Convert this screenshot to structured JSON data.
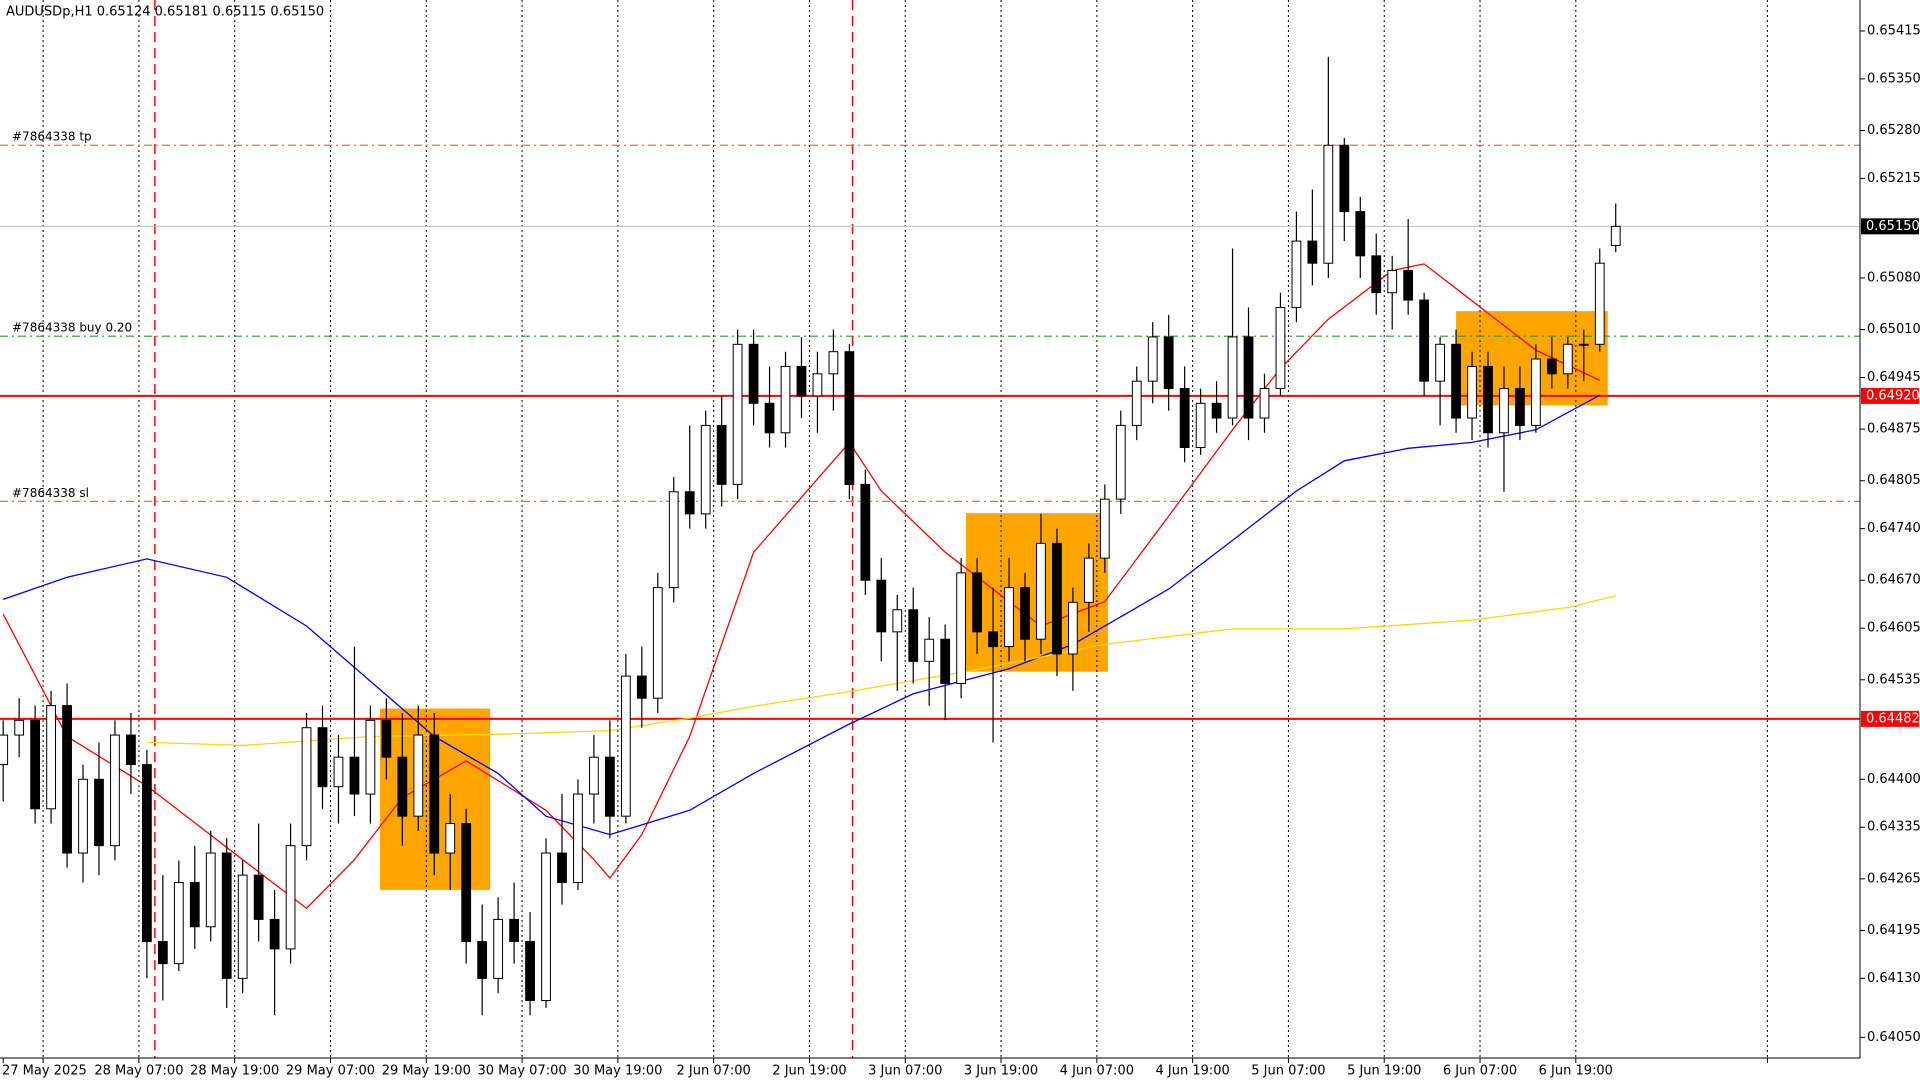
{
  "chart_data": {
    "type": "candlestick",
    "header": "AUDUSDp,H1  0.65124 0.65181 0.65115 0.65150",
    "xlim": [
      -0.2,
      116.3
    ],
    "ylim": [
      0.64022,
      0.65457
    ],
    "grid": true,
    "bull_color": "#ffffff",
    "bear_color": "#000000",
    "outline_color": "#000000",
    "yticks": [
      0.65415,
      {
        "value": 0.6535,
        "label": "0.65350"
      },
      {
        "value": 0.6528,
        "label": "0.65280"
      },
      0.65215,
      {
        "value": 0.6508,
        "label": "0.65080"
      },
      {
        "value": 0.6501,
        "label": "0.65010"
      },
      0.64945,
      0.64875,
      0.64805,
      {
        "value": 0.6474,
        "label": "0.64740"
      },
      {
        "value": 0.6467,
        "label": "0.64670"
      },
      0.64605,
      0.64535,
      {
        "value": 0.644,
        "label": "0.64400"
      },
      0.64335,
      0.64265,
      0.64195,
      {
        "value": 0.6413,
        "label": "0.64130"
      },
      {
        "value": 0.6405,
        "label": "0.64050"
      }
    ],
    "xticks": [
      {
        "value": 0,
        "label": "27 May 2025"
      },
      {
        "value": 2.5,
        "label": null
      },
      {
        "value": 8.5,
        "label": "28 May 07:00"
      },
      {
        "value": 14.5,
        "label": "28 May 19:00"
      },
      {
        "value": 20.5,
        "label": "29 May 07:00"
      },
      {
        "value": 26.5,
        "label": "29 May 19:00"
      },
      {
        "value": 32.5,
        "label": "30 May 07:00"
      },
      {
        "value": 38.5,
        "label": "30 May 19:00"
      },
      {
        "value": 44.5,
        "label": "2 Jun 07:00"
      },
      {
        "value": 50.5,
        "label": "2 Jun 19:00"
      },
      {
        "value": 56.5,
        "label": "3 Jun 07:00"
      },
      {
        "value": 62.5,
        "label": "3 Jun 19:00"
      },
      {
        "value": 68.5,
        "label": "4 Jun 07:00"
      },
      {
        "value": 74.5,
        "label": "4 Jun 19:00"
      },
      {
        "value": 80.5,
        "label": "5 Jun 07:00"
      },
      {
        "value": 86.5,
        "label": "5 Jun 19:00"
      },
      {
        "value": 92.5,
        "label": "6 Jun 07:00"
      },
      {
        "value": 98.5,
        "label": "6 Jun 19:00"
      },
      {
        "value": 110.5,
        "label": null
      }
    ],
    "period_separators": [
      9.5,
      53.2
    ],
    "zones": [
      {
        "from": 23.6,
        "to": 30.5,
        "top": 0.64496,
        "bottom": 0.6425
      },
      {
        "from": 60.3,
        "to": 69.2,
        "top": 0.64761,
        "bottom": 0.64546
      },
      {
        "from": 91,
        "to": 100.5,
        "top": 0.65035,
        "bottom": 0.64907
      }
    ],
    "zone_color": "#ffa500",
    "price_lines": [
      {
        "value": 0.6515,
        "label": "0.65150",
        "color": "#c0c0c0",
        "label_bg": "#000000"
      },
      {
        "value": 0.6492,
        "label": "0.64920",
        "color": "#ff0000",
        "label_bg": "#ff0000"
      },
      {
        "value": 0.64482,
        "label": "0.64482",
        "color": "#ff0000",
        "label_bg": "#ff0000"
      }
    ],
    "order_lines": [
      {
        "value": 0.6526,
        "text": "#7864338 tp",
        "color": "#f07030"
      },
      {
        "value": 0.65001,
        "text": "#7864338 buy 0.20",
        "color": "#20a020"
      },
      {
        "value": 0.64777,
        "text": "#7864338 sl",
        "color": "#f07030"
      }
    ],
    "moving_averages": [
      {
        "color": "#ff0000",
        "x": [
          0,
          4,
          9,
          15,
          19,
          22,
          25,
          29,
          34,
          37,
          38,
          40,
          43,
          47,
          53,
          55,
          59,
          63,
          65,
          69,
          73,
          77,
          80,
          83,
          87,
          89,
          92,
          96,
          100
        ],
        "values": [
          0.64624,
          0.64458,
          0.64391,
          0.64291,
          0.64225,
          0.64291,
          0.64375,
          0.64425,
          0.64358,
          0.64291,
          0.64266,
          0.64325,
          0.64458,
          0.64708,
          0.64857,
          0.64791,
          0.64708,
          0.64641,
          0.64608,
          0.64641,
          0.64757,
          0.64874,
          0.64957,
          0.65024,
          0.6509,
          0.65099,
          0.65049,
          0.64982,
          0.64941
        ]
      },
      {
        "color": "#0000ff",
        "x": [
          0,
          4,
          9,
          14,
          19,
          23,
          27,
          31,
          34,
          38,
          43,
          47,
          53,
          57,
          63,
          67,
          73,
          77,
          81,
          84,
          88,
          92,
          96,
          100
        ],
        "values": [
          0.64644,
          0.64674,
          0.64699,
          0.64674,
          0.64608,
          0.64533,
          0.64458,
          0.64408,
          0.6435,
          0.64325,
          0.64358,
          0.64408,
          0.64475,
          0.64516,
          0.6455,
          0.64583,
          0.64658,
          0.64724,
          0.64791,
          0.64832,
          0.64849,
          0.64857,
          0.64874,
          0.64921
        ]
      },
      {
        "color": "#ffd700",
        "x": [
          9,
          15,
          23,
          31,
          38,
          43,
          47,
          53,
          61,
          69,
          77,
          84,
          92,
          98,
          101
        ],
        "values": [
          0.6445,
          0.64446,
          0.64458,
          0.64461,
          0.64466,
          0.64483,
          0.64499,
          0.64519,
          0.64549,
          0.64583,
          0.64604,
          0.64604,
          0.64616,
          0.64633,
          0.64649
        ]
      }
    ],
    "ohlc": [
      [
        0.6442,
        0.6448,
        0.6437,
        0.6446
      ],
      [
        0.6446,
        0.6451,
        0.6443,
        0.6448
      ],
      [
        0.6448,
        0.645,
        0.6434,
        0.6436
      ],
      [
        0.6436,
        0.6452,
        0.6434,
        0.645
      ],
      [
        0.645,
        0.6453,
        0.6428,
        0.643
      ],
      [
        0.643,
        0.6442,
        0.6426,
        0.644
      ],
      [
        0.644,
        0.6445,
        0.6427,
        0.6431
      ],
      [
        0.6431,
        0.6448,
        0.6429,
        0.6446
      ],
      [
        0.6446,
        0.6449,
        0.6438,
        0.6442
      ],
      [
        0.6442,
        0.6444,
        0.6413,
        0.6418
      ],
      [
        0.6418,
        0.6427,
        0.641,
        0.6415
      ],
      [
        0.6415,
        0.6429,
        0.6414,
        0.6426
      ],
      [
        0.6426,
        0.6431,
        0.6417,
        0.642
      ],
      [
        0.642,
        0.6433,
        0.6418,
        0.643
      ],
      [
        0.643,
        0.6432,
        0.6409,
        0.6413
      ],
      [
        0.6413,
        0.6429,
        0.6411,
        0.6427
      ],
      [
        0.6427,
        0.6434,
        0.6418,
        0.6421
      ],
      [
        0.6421,
        0.6425,
        0.6408,
        0.6417
      ],
      [
        0.6417,
        0.6434,
        0.6415,
        0.6431
      ],
      [
        0.6431,
        0.6449,
        0.6429,
        0.6447
      ],
      [
        0.6447,
        0.645,
        0.6436,
        0.6439
      ],
      [
        0.6439,
        0.6446,
        0.6434,
        0.6443
      ],
      [
        0.6443,
        0.6458,
        0.6435,
        0.6438
      ],
      [
        0.6438,
        0.645,
        0.6434,
        0.6448
      ],
      [
        0.6448,
        0.6451,
        0.644,
        0.6443
      ],
      [
        0.6443,
        0.6449,
        0.6431,
        0.6435
      ],
      [
        0.6435,
        0.645,
        0.6433,
        0.6446
      ],
      [
        0.6446,
        0.6449,
        0.6427,
        0.643
      ],
      [
        0.643,
        0.6438,
        0.6425,
        0.6434
      ],
      [
        0.6434,
        0.6436,
        0.6415,
        0.6418
      ],
      [
        0.6418,
        0.6423,
        0.6408,
        0.6413
      ],
      [
        0.6413,
        0.6424,
        0.6411,
        0.6421
      ],
      [
        0.6421,
        0.6426,
        0.6415,
        0.6418
      ],
      [
        0.6418,
        0.6422,
        0.6408,
        0.641
      ],
      [
        0.641,
        0.6432,
        0.6409,
        0.643
      ],
      [
        0.643,
        0.6438,
        0.6423,
        0.6426
      ],
      [
        0.6426,
        0.644,
        0.6425,
        0.6438
      ],
      [
        0.6438,
        0.6446,
        0.6434,
        0.6443
      ],
      [
        0.6443,
        0.6448,
        0.6432,
        0.6435
      ],
      [
        0.6435,
        0.6457,
        0.6434,
        0.6454
      ],
      [
        0.6454,
        0.6458,
        0.6447,
        0.6451
      ],
      [
        0.6451,
        0.6468,
        0.6449,
        0.6466
      ],
      [
        0.6466,
        0.6481,
        0.6464,
        0.6479
      ],
      [
        0.6479,
        0.6488,
        0.6474,
        0.6476
      ],
      [
        0.6476,
        0.649,
        0.6474,
        0.6488
      ],
      [
        0.6488,
        0.6492,
        0.6477,
        0.648
      ],
      [
        0.648,
        0.6501,
        0.6478,
        0.6499
      ],
      [
        0.6499,
        0.6501,
        0.6488,
        0.6491
      ],
      [
        0.6491,
        0.6496,
        0.6485,
        0.6487
      ],
      [
        0.6487,
        0.6498,
        0.6485,
        0.6496
      ],
      [
        0.6496,
        0.65,
        0.6489,
        0.6492
      ],
      [
        0.6492,
        0.6498,
        0.6487,
        0.6495
      ],
      [
        0.6495,
        0.6501,
        0.649,
        0.6498
      ],
      [
        0.6498,
        0.6499,
        0.6478,
        0.648
      ],
      [
        0.648,
        0.6482,
        0.6465,
        0.6467
      ],
      [
        0.6467,
        0.647,
        0.6456,
        0.646
      ],
      [
        0.646,
        0.6465,
        0.6452,
        0.6463
      ],
      [
        0.6463,
        0.6466,
        0.6453,
        0.6456
      ],
      [
        0.6456,
        0.6462,
        0.645,
        0.6459
      ],
      [
        0.6459,
        0.6461,
        0.6448,
        0.6453
      ],
      [
        0.6453,
        0.647,
        0.6451,
        0.6468
      ],
      [
        0.6468,
        0.647,
        0.6457,
        0.646
      ],
      [
        0.646,
        0.6466,
        0.6445,
        0.6458
      ],
      [
        0.6458,
        0.647,
        0.6456,
        0.6466
      ],
      [
        0.6466,
        0.6468,
        0.6456,
        0.6459
      ],
      [
        0.6459,
        0.6476,
        0.6457,
        0.6472
      ],
      [
        0.6472,
        0.6474,
        0.6454,
        0.6457
      ],
      [
        0.6457,
        0.6466,
        0.6452,
        0.6464
      ],
      [
        0.6464,
        0.6472,
        0.646,
        0.647
      ],
      [
        0.647,
        0.648,
        0.6468,
        0.6478
      ],
      [
        0.6478,
        0.649,
        0.6476,
        0.6488
      ],
      [
        0.6488,
        0.6496,
        0.6486,
        0.6494
      ],
      [
        0.6494,
        0.6502,
        0.6491,
        0.65
      ],
      [
        0.65,
        0.6503,
        0.649,
        0.6493
      ],
      [
        0.6493,
        0.6496,
        0.6483,
        0.6485
      ],
      [
        0.6485,
        0.6493,
        0.6484,
        0.6491
      ],
      [
        0.6491,
        0.6494,
        0.6487,
        0.6489
      ],
      [
        0.6489,
        0.6512,
        0.6488,
        0.65
      ],
      [
        0.65,
        0.6504,
        0.6486,
        0.6489
      ],
      [
        0.6489,
        0.6495,
        0.6487,
        0.6493
      ],
      [
        0.6493,
        0.6506,
        0.6492,
        0.6504
      ],
      [
        0.6504,
        0.6517,
        0.6502,
        0.6513
      ],
      [
        0.6513,
        0.652,
        0.6507,
        0.651
      ],
      [
        0.651,
        0.6538,
        0.6508,
        0.6526
      ],
      [
        0.6526,
        0.6527,
        0.6513,
        0.6517
      ],
      [
        0.6517,
        0.6519,
        0.6508,
        0.6511
      ],
      [
        0.6511,
        0.6514,
        0.6503,
        0.6506
      ],
      [
        0.6506,
        0.6511,
        0.6501,
        0.6509
      ],
      [
        0.6509,
        0.6516,
        0.6503,
        0.6505
      ],
      [
        0.6505,
        0.6506,
        0.6492,
        0.6494
      ],
      [
        0.6494,
        0.65,
        0.6488,
        0.6499
      ],
      [
        0.6499,
        0.6501,
        0.6487,
        0.6489
      ],
      [
        0.6489,
        0.6498,
        0.6486,
        0.6496
      ],
      [
        0.6496,
        0.6498,
        0.6485,
        0.6487
      ],
      [
        0.6487,
        0.6496,
        0.6479,
        0.6493
      ],
      [
        0.6493,
        0.6496,
        0.6486,
        0.6488
      ],
      [
        0.6488,
        0.6499,
        0.6487,
        0.6497
      ],
      [
        0.6497,
        0.65,
        0.6493,
        0.6495
      ],
      [
        0.6495,
        0.65,
        0.6493,
        0.6499
      ],
      [
        0.6499,
        0.6501,
        0.6494,
        0.6499
      ],
      [
        0.6499,
        0.6512,
        0.6498,
        0.651
      ],
      [
        0.65124,
        0.65181,
        0.65115,
        0.6515
      ]
    ]
  }
}
